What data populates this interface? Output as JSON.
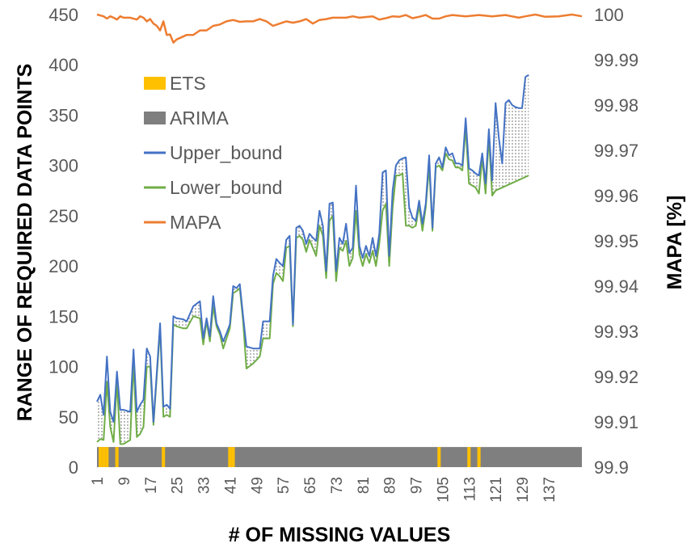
{
  "chart_data": {
    "type": "line",
    "xlabel": "# OF MISSING VALUES",
    "ylabel": "RANGE OF REQUIRED DATA POINTS",
    "y2label": "MAPA [%]",
    "ylim": [
      0,
      450
    ],
    "y2lim": [
      99.9,
      100
    ],
    "xlim": [
      1,
      147
    ],
    "x_ticks": [
      1,
      9,
      17,
      25,
      33,
      41,
      49,
      57,
      65,
      73,
      81,
      89,
      97,
      105,
      113,
      121,
      129,
      137
    ],
    "y_ticks": [
      0,
      50,
      100,
      150,
      200,
      250,
      300,
      350,
      400,
      450
    ],
    "y2_ticks": [
      "99.9",
      "99.91",
      "99.92",
      "99.93",
      "99.94",
      "99.95",
      "99.96",
      "99.97",
      "99.98",
      "99.99",
      "100"
    ],
    "legend_position": "left",
    "legend": [
      {
        "name": "ETS",
        "marker": "bar",
        "color": "#FFC000"
      },
      {
        "name": "ARIMA",
        "marker": "bar",
        "color": "#7F7F7F"
      },
      {
        "name": "Upper_bound",
        "marker": "line",
        "color": "#4472C4"
      },
      {
        "name": "Lower_bound",
        "marker": "line",
        "color": "#70AD47"
      },
      {
        "name": "MAPA",
        "marker": "line",
        "color": "#ED7D31"
      }
    ],
    "model_strip": {
      "default": "ARIMA",
      "ets_at_x": [
        2,
        3,
        4,
        7,
        21,
        41,
        42,
        104,
        113,
        116
      ]
    },
    "series": [
      {
        "name": "Upper_bound",
        "axis": "left",
        "color": "#4472C4",
        "points": [
          [
            1,
            65
          ],
          [
            2,
            72
          ],
          [
            3,
            52
          ],
          [
            4,
            110
          ],
          [
            5,
            55
          ],
          [
            6,
            45
          ],
          [
            7,
            95
          ],
          [
            8,
            57
          ],
          [
            9,
            57
          ],
          [
            11,
            55
          ],
          [
            12,
            117
          ],
          [
            13,
            55
          ],
          [
            14,
            62
          ],
          [
            15,
            67
          ],
          [
            16,
            118
          ],
          [
            17,
            110
          ],
          [
            18,
            45
          ],
          [
            20,
            143
          ],
          [
            21,
            60
          ],
          [
            22,
            62
          ],
          [
            23,
            58
          ],
          [
            24,
            150
          ],
          [
            25,
            148
          ],
          [
            27,
            147
          ],
          [
            28,
            145
          ],
          [
            30,
            160
          ],
          [
            32,
            165
          ],
          [
            33,
            128
          ],
          [
            34,
            148
          ],
          [
            35,
            130
          ],
          [
            36,
            170
          ],
          [
            37,
            143
          ],
          [
            38,
            135
          ],
          [
            39,
            125
          ],
          [
            40,
            133
          ],
          [
            41,
            142
          ],
          [
            42,
            180
          ],
          [
            43,
            178
          ],
          [
            44,
            182
          ],
          [
            45,
            150
          ],
          [
            46,
            120
          ],
          [
            48,
            118
          ],
          [
            50,
            118
          ],
          [
            51,
            145
          ],
          [
            53,
            145
          ],
          [
            54,
            190
          ],
          [
            55,
            207
          ],
          [
            56,
            203
          ],
          [
            57,
            200
          ],
          [
            58,
            226
          ],
          [
            59,
            230
          ],
          [
            60,
            142
          ],
          [
            61,
            238
          ],
          [
            62,
            240
          ],
          [
            63,
            235
          ],
          [
            64,
            222
          ],
          [
            65,
            232
          ],
          [
            66,
            228
          ],
          [
            67,
            225
          ],
          [
            68,
            255
          ],
          [
            69,
            240
          ],
          [
            70,
            195
          ],
          [
            71,
            262
          ],
          [
            72,
            263
          ],
          [
            73,
            195
          ],
          [
            74,
            228
          ],
          [
            75,
            222
          ],
          [
            76,
            242
          ],
          [
            77,
            213
          ],
          [
            78,
            218
          ],
          [
            79,
            280
          ],
          [
            80,
            220
          ],
          [
            81,
            208
          ],
          [
            82,
            220
          ],
          [
            83,
            210
          ],
          [
            84,
            228
          ],
          [
            85,
            210
          ],
          [
            86,
            232
          ],
          [
            87,
            293
          ],
          [
            88,
            295
          ],
          [
            89,
            210
          ],
          [
            90,
            275
          ],
          [
            91,
            300
          ],
          [
            92,
            305
          ],
          [
            93,
            307
          ],
          [
            94,
            308
          ],
          [
            95,
            258
          ],
          [
            96,
            248
          ],
          [
            97,
            245
          ],
          [
            98,
            265
          ],
          [
            99,
            242
          ],
          [
            100,
            262
          ],
          [
            101,
            310
          ],
          [
            102,
            238
          ],
          [
            103,
            302
          ],
          [
            104,
            308
          ],
          [
            105,
            298
          ],
          [
            106,
            318
          ],
          [
            107,
            310
          ],
          [
            108,
            312
          ],
          [
            109,
            302
          ],
          [
            110,
            302
          ],
          [
            111,
            300
          ],
          [
            112,
            347
          ],
          [
            113,
            297
          ],
          [
            114,
            295
          ],
          [
            115,
            292
          ],
          [
            116,
            290
          ],
          [
            117,
            312
          ],
          [
            118,
            282
          ],
          [
            119,
            336
          ],
          [
            120,
            285
          ],
          [
            121,
            362
          ],
          [
            122,
            327
          ],
          [
            123,
            302
          ],
          [
            124,
            362
          ],
          [
            125,
            365
          ],
          [
            126,
            360
          ],
          [
            127,
            358
          ],
          [
            128,
            357
          ],
          [
            129,
            357
          ],
          [
            130,
            388
          ],
          [
            131,
            390
          ]
        ]
      },
      {
        "name": "Lower_bound",
        "axis": "left",
        "color": "#70AD47",
        "points": [
          [
            1,
            25
          ],
          [
            2,
            28
          ],
          [
            3,
            27
          ],
          [
            4,
            85
          ],
          [
            5,
            40
          ],
          [
            6,
            25
          ],
          [
            7,
            85
          ],
          [
            8,
            23
          ],
          [
            9,
            23
          ],
          [
            11,
            27
          ],
          [
            12,
            105
          ],
          [
            13,
            30
          ],
          [
            14,
            33
          ],
          [
            15,
            40
          ],
          [
            16,
            100
          ],
          [
            17,
            100
          ],
          [
            18,
            42
          ],
          [
            20,
            138
          ],
          [
            21,
            50
          ],
          [
            22,
            52
          ],
          [
            23,
            50
          ],
          [
            24,
            142
          ],
          [
            25,
            140
          ],
          [
            27,
            138
          ],
          [
            28,
            138
          ],
          [
            30,
            150
          ],
          [
            32,
            148
          ],
          [
            33,
            122
          ],
          [
            34,
            145
          ],
          [
            35,
            125
          ],
          [
            36,
            160
          ],
          [
            37,
            140
          ],
          [
            38,
            132
          ],
          [
            39,
            118
          ],
          [
            40,
            128
          ],
          [
            41,
            138
          ],
          [
            42,
            173
          ],
          [
            43,
            175
          ],
          [
            44,
            178
          ],
          [
            45,
            145
          ],
          [
            46,
            98
          ],
          [
            48,
            103
          ],
          [
            50,
            110
          ],
          [
            51,
            128
          ],
          [
            53,
            128
          ],
          [
            54,
            182
          ],
          [
            55,
            193
          ],
          [
            56,
            190
          ],
          [
            57,
            185
          ],
          [
            58,
            218
          ],
          [
            59,
            220
          ],
          [
            60,
            140
          ],
          [
            61,
            228
          ],
          [
            62,
            230
          ],
          [
            63,
            226
          ],
          [
            64,
            214
          ],
          [
            65,
            226
          ],
          [
            66,
            218
          ],
          [
            67,
            210
          ],
          [
            68,
            240
          ],
          [
            69,
            230
          ],
          [
            70,
            188
          ],
          [
            71,
            245
          ],
          [
            72,
            250
          ],
          [
            73,
            185
          ],
          [
            74,
            218
          ],
          [
            75,
            215
          ],
          [
            76,
            225
          ],
          [
            77,
            200
          ],
          [
            78,
            208
          ],
          [
            79,
            255
          ],
          [
            80,
            212
          ],
          [
            81,
            200
          ],
          [
            82,
            212
          ],
          [
            83,
            203
          ],
          [
            84,
            215
          ],
          [
            85,
            200
          ],
          [
            86,
            222
          ],
          [
            87,
            255
          ],
          [
            88,
            262
          ],
          [
            89,
            200
          ],
          [
            90,
            258
          ],
          [
            91,
            290
          ],
          [
            92,
            290
          ],
          [
            93,
            292
          ],
          [
            94,
            240
          ],
          [
            95,
            240
          ],
          [
            96,
            238
          ],
          [
            97,
            240
          ],
          [
            98,
            260
          ],
          [
            99,
            235
          ],
          [
            100,
            258
          ],
          [
            101,
            300
          ],
          [
            102,
            235
          ],
          [
            103,
            298
          ],
          [
            104,
            300
          ],
          [
            105,
            295
          ],
          [
            106,
            312
          ],
          [
            107,
            306
          ],
          [
            108,
            305
          ],
          [
            109,
            298
          ],
          [
            110,
            298
          ],
          [
            111,
            295
          ],
          [
            112,
            338
          ],
          [
            113,
            282
          ],
          [
            114,
            280
          ],
          [
            115,
            278
          ],
          [
            116,
            272
          ],
          [
            117,
            308
          ],
          [
            118,
            272
          ],
          [
            119,
            328
          ],
          [
            120,
            270
          ],
          [
            121,
            275
          ],
          [
            131,
            290
          ]
        ]
      },
      {
        "name": "MAPA",
        "axis": "right",
        "color": "#ED7D31",
        "points": [
          [
            1,
            100.0
          ],
          [
            3,
            99.9996
          ],
          [
            4,
            99.9991
          ],
          [
            5,
            99.9996
          ],
          [
            6,
            99.9993
          ],
          [
            7,
            99.9989
          ],
          [
            8,
            99.9996
          ],
          [
            9,
            99.9993
          ],
          [
            11,
            99.9993
          ],
          [
            13,
            99.9989
          ],
          [
            14,
            99.9996
          ],
          [
            15,
            99.9993
          ],
          [
            16,
            99.9985
          ],
          [
            17,
            99.999
          ],
          [
            18,
            99.998
          ],
          [
            19,
            99.9975
          ],
          [
            20,
            99.9965
          ],
          [
            21,
            99.9985
          ],
          [
            22,
            99.9955
          ],
          [
            23,
            99.9956
          ],
          [
            24,
            99.9938
          ],
          [
            25,
            99.9945
          ],
          [
            28,
            99.9955
          ],
          [
            30,
            99.9955
          ],
          [
            32,
            99.9965
          ],
          [
            34,
            99.9965
          ],
          [
            36,
            99.9975
          ],
          [
            38,
            99.9978
          ],
          [
            40,
            99.9985
          ],
          [
            42,
            99.9988
          ],
          [
            44,
            99.9984
          ],
          [
            46,
            99.9985
          ],
          [
            48,
            99.9985
          ],
          [
            50,
            99.999
          ],
          [
            52,
            99.9985
          ],
          [
            54,
            99.9975
          ],
          [
            56,
            99.998
          ],
          [
            58,
            99.9985
          ],
          [
            60,
            99.9982
          ],
          [
            62,
            99.9985
          ],
          [
            64,
            99.999
          ],
          [
            66,
            99.998
          ],
          [
            68,
            99.9988
          ],
          [
            70,
            99.999
          ],
          [
            72,
            99.9993
          ],
          [
            76,
            99.9993
          ],
          [
            78,
            99.9996
          ],
          [
            80,
            99.9993
          ],
          [
            84,
            99.9996
          ],
          [
            86,
            99.9989
          ],
          [
            88,
            99.9992
          ],
          [
            90,
            99.9996
          ],
          [
            92,
            99.9995
          ],
          [
            94,
            99.9999
          ],
          [
            96,
            99.9992
          ],
          [
            98,
            99.9995
          ],
          [
            100,
            99.9999
          ],
          [
            102,
            99.9991
          ],
          [
            104,
            99.9991
          ],
          [
            106,
            99.9996
          ],
          [
            108,
            99.9999
          ],
          [
            112,
            99.9996
          ],
          [
            116,
            99.9999
          ],
          [
            120,
            99.9996
          ],
          [
            124,
            99.9999
          ],
          [
            128,
            99.9993
          ],
          [
            130,
            99.9996
          ],
          [
            133,
            100.0
          ],
          [
            136,
            99.9995
          ],
          [
            140,
            99.9996
          ],
          [
            144,
            100.0
          ],
          [
            147,
            99.9996
          ]
        ]
      }
    ]
  }
}
